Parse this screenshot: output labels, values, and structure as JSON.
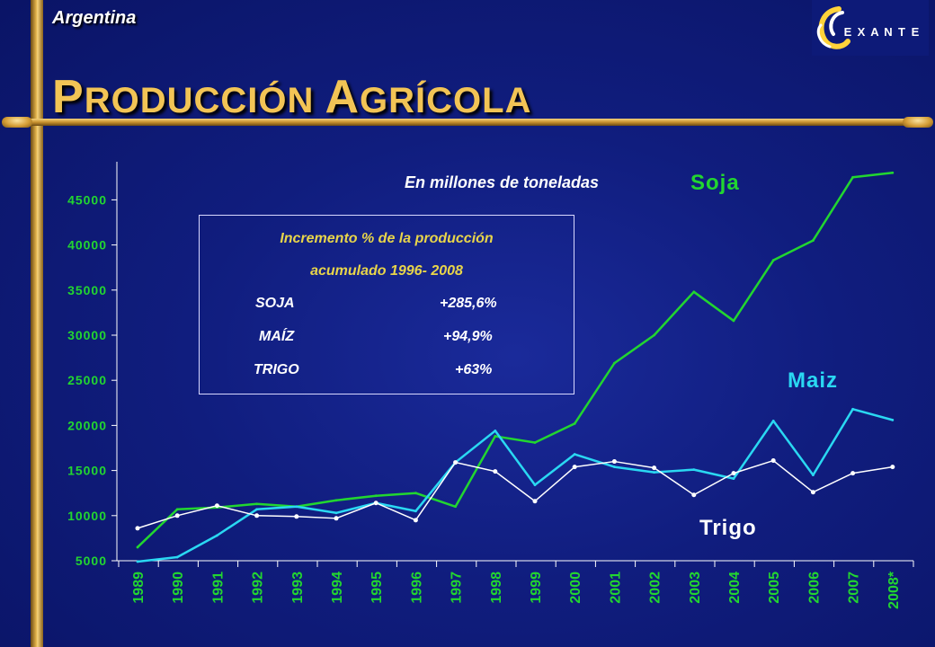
{
  "header": {
    "country": "Argentina",
    "title_first_initial": "P",
    "title_first_rest": "RODUCCIÓN",
    "title_second_initial": "A",
    "title_second_rest": "GRÍCOLA"
  },
  "logo": {
    "letters": [
      "E",
      "X",
      "A",
      "N",
      "T",
      "E"
    ],
    "icon": "swirl-logo-icon"
  },
  "colors": {
    "soja": "#22d630",
    "maiz": "#2ad8f2",
    "trigo": "#ffffff",
    "title": "#f2c455",
    "axis_text": "#22d630"
  },
  "chart_data": {
    "type": "line",
    "subtitle": "En millones de toneladas",
    "categories": [
      "1989",
      "1990",
      "1991",
      "1992",
      "1993",
      "1994",
      "1995",
      "1996",
      "1997",
      "1998",
      "1999",
      "2000",
      "2001",
      "2002",
      "2003",
      "2004",
      "2005",
      "2006",
      "2007",
      "2008*"
    ],
    "ylim": [
      5000,
      48000
    ],
    "yticks": [
      5000,
      10000,
      15000,
      20000,
      25000,
      30000,
      35000,
      40000,
      45000
    ],
    "ytick_labels": [
      "5000",
      "10000",
      "15000",
      "20000",
      "25000",
      "30000",
      "35000",
      "40000",
      "45000"
    ],
    "grid": false,
    "series": [
      {
        "name": "Soja",
        "key": "soja",
        "markers": false,
        "values": [
          6500,
          10700,
          10900,
          11300,
          11000,
          11700,
          12200,
          12500,
          11000,
          18800,
          18100,
          20200,
          26900,
          30000,
          34800,
          31600,
          38300,
          40500,
          47500,
          48000
        ]
      },
      {
        "name": "Maiz",
        "key": "maiz",
        "markers": false,
        "values": [
          4900,
          5400,
          7800,
          10700,
          11000,
          10300,
          11400,
          10500,
          15900,
          19400,
          13400,
          16800,
          15400,
          14800,
          15100,
          14100,
          20500,
          14500,
          21800,
          20600
        ]
      },
      {
        "name": "Trigo",
        "key": "trigo",
        "markers": true,
        "values": [
          8600,
          10000,
          11100,
          10000,
          9900,
          9700,
          11400,
          9500,
          15900,
          14900,
          11600,
          15400,
          16000,
          15300,
          12300,
          14700,
          16100,
          12600,
          14700,
          15400
        ]
      }
    ]
  },
  "infobox": {
    "title_line1": "Incremento % de la producción",
    "title_line2": "acumulado 1996- 2008",
    "rows": [
      {
        "crop": "SOJA",
        "value": "+285,6%"
      },
      {
        "crop": "MAÍZ",
        "value": "+94,9%"
      },
      {
        "crop": "TRIGO",
        "value": "+63%"
      }
    ]
  }
}
